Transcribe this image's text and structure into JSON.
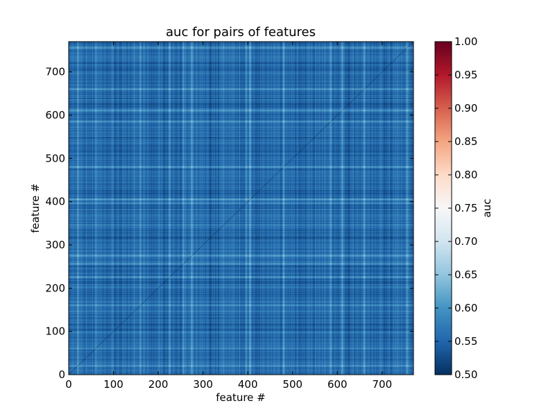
{
  "chart_data": {
    "type": "heatmap",
    "title": "auc for pairs of features",
    "xlabel": "feature #",
    "ylabel": "feature #",
    "xlim": [
      0,
      770
    ],
    "ylim": [
      0,
      770
    ],
    "x_ticks": [
      0,
      100,
      200,
      300,
      400,
      500,
      600,
      700
    ],
    "y_ticks": [
      0,
      100,
      200,
      300,
      400,
      500,
      600,
      700
    ],
    "n_features": 770,
    "colormap": "RdBu_r",
    "colorbar": {
      "label": "auc",
      "range": [
        0.5,
        1.0
      ],
      "ticks": [
        "0.50",
        "0.55",
        "0.60",
        "0.65",
        "0.70",
        "0.75",
        "0.80",
        "0.85",
        "0.90",
        "0.95",
        "1.00"
      ]
    },
    "value_summary": {
      "typical_min": 0.5,
      "typical_max": 0.65,
      "diagonal_value": 0.5
    },
    "light_bands": [
      20,
      60,
      160,
      225,
      255,
      275,
      345,
      395,
      405,
      480,
      585,
      610,
      660,
      755
    ],
    "dark_bands": [
      115,
      185,
      315,
      335,
      455,
      545,
      625,
      720
    ],
    "grid": false,
    "legend": "colorbar-right"
  }
}
